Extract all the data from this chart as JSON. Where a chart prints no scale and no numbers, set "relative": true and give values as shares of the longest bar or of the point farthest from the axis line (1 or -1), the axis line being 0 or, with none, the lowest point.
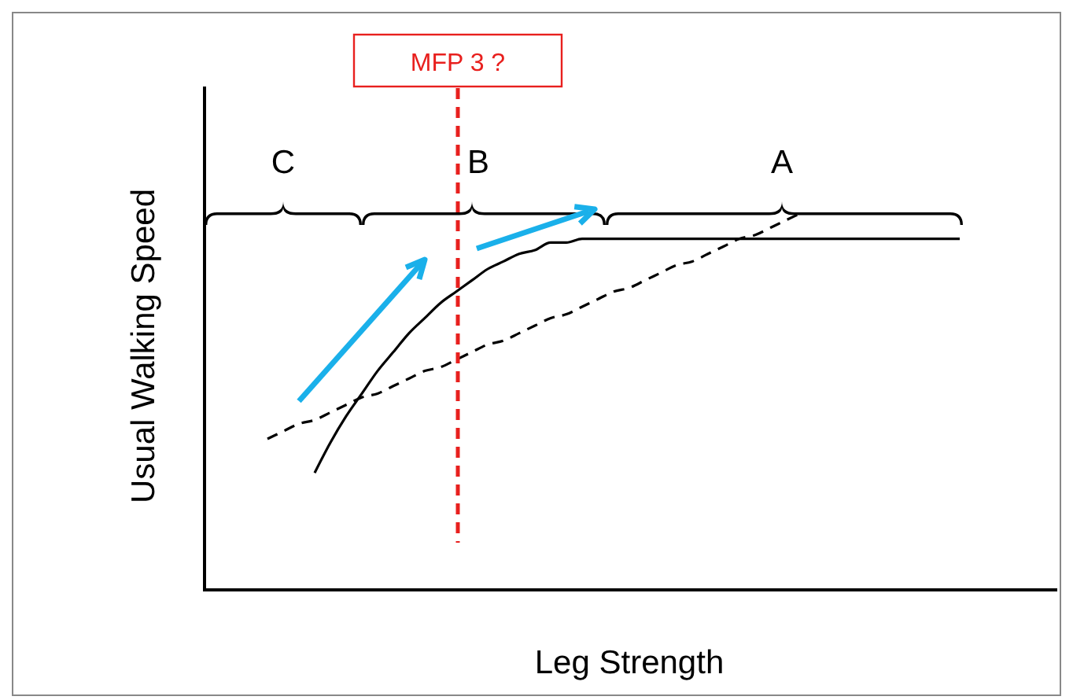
{
  "chart_data": {
    "type": "line",
    "relative": true,
    "xlabel": "Leg Strength",
    "ylabel": "Usual Walking Speed",
    "categories": [
      null,
      null,
      null,
      null,
      null,
      null,
      null,
      null,
      null,
      null,
      null,
      null,
      null,
      null,
      null,
      null,
      null,
      null,
      null,
      null,
      null,
      null,
      null,
      null,
      null,
      null,
      null,
      null,
      null,
      null,
      null,
      null,
      null,
      null,
      null,
      null,
      null,
      null,
      null,
      null,
      null,
      null,
      null,
      null,
      null,
      null,
      null,
      null,
      null,
      null,
      null
    ],
    "series": [
      {
        "color": "#000000",
        "line_style": "solid",
        "values": [
          null,
          null,
          null,
          null,
          null,
          0.31,
          0.39,
          0.46,
          0.52,
          0.58,
          0.63,
          0.68,
          0.72,
          0.76,
          0.79,
          0.82,
          0.85,
          0.87,
          0.89,
          0.9,
          0.92,
          0.92,
          0.93,
          0.93,
          0.93,
          0.93,
          0.93,
          0.93,
          0.93,
          0.93,
          0.93,
          0.93,
          0.93,
          0.93,
          0.93,
          0.93,
          0.93,
          0.93,
          0.93,
          0.93,
          0.93,
          0.93,
          0.93,
          0.93,
          0.93,
          0.93,
          0.93,
          null,
          null,
          null,
          null
        ]
      },
      {
        "color": "#000000",
        "line_style": "dashed",
        "values": [
          null,
          null,
          0.4,
          0.42,
          0.44,
          0.45,
          0.47,
          0.49,
          0.51,
          0.52,
          0.54,
          0.56,
          0.58,
          0.59,
          0.61,
          0.63,
          0.65,
          0.66,
          0.68,
          0.7,
          0.72,
          0.73,
          0.75,
          0.77,
          0.79,
          0.8,
          0.82,
          0.84,
          0.86,
          0.87,
          0.89,
          0.91,
          0.93,
          0.94,
          0.96,
          0.98,
          1.0,
          null,
          null,
          null,
          null,
          null,
          null,
          null,
          null,
          null,
          null,
          null,
          null,
          null,
          null
        ]
      }
    ],
    "annotations": [
      "MFP 3 ?",
      "C",
      "B",
      "A"
    ]
  }
}
